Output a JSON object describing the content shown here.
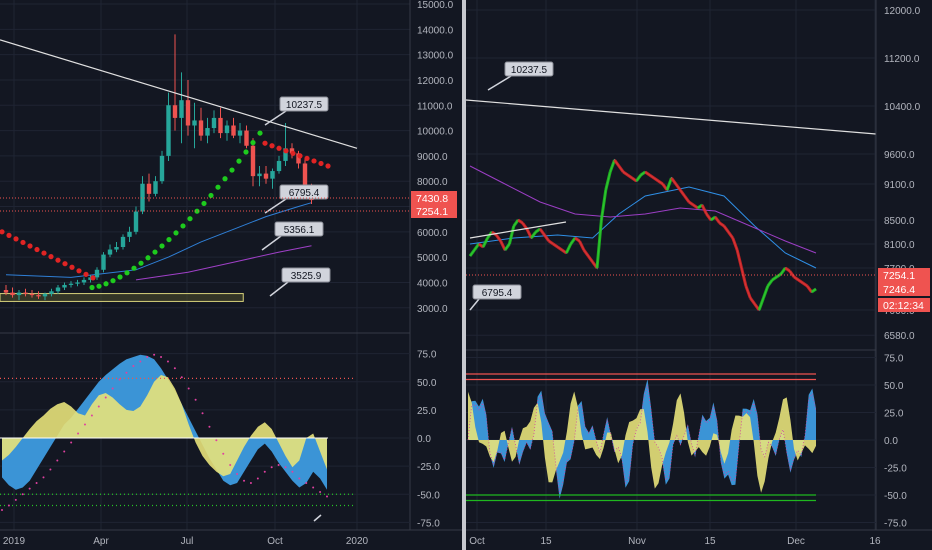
{
  "colors": {
    "background": "#131722",
    "grid": "#1f2433",
    "divider": "#c7c9cf",
    "axis_text": "#b2b5be",
    "bull": "#26a69a",
    "bear": "#ef5350",
    "rsi_blue": "#3d9be0",
    "rsi_yellow": "#e8e27a",
    "label_bg": "#d1d4dc",
    "price_tag_red": "#ef5350",
    "zone_fill": "#4a4a2a",
    "zone_stroke": "#d8d27a"
  },
  "chart_data": [
    {
      "panel": "left-main",
      "type": "candlestick",
      "x_ticks": [
        "2019",
        "Apr",
        "Jul",
        "Oct",
        "2020"
      ],
      "y_ticks": [
        "3000.0",
        "4000.0",
        "5000.0",
        "6000.0",
        "7000.0",
        "8000.0",
        "9000.0",
        "10000.0",
        "11000.0",
        "12000.0",
        "13000.0",
        "14000.0",
        "15000.0"
      ],
      "ylim": [
        2200,
        15000
      ],
      "candles": [
        [
          3700,
          3900,
          3500,
          3600
        ],
        [
          3600,
          3800,
          3400,
          3500
        ],
        [
          3500,
          3700,
          3300,
          3600
        ],
        [
          3600,
          3750,
          3450,
          3550
        ],
        [
          3550,
          3700,
          3400,
          3500
        ],
        [
          3500,
          3650,
          3350,
          3450
        ],
        [
          3450,
          3600,
          3300,
          3550
        ],
        [
          3550,
          3750,
          3450,
          3650
        ],
        [
          3650,
          3900,
          3550,
          3800
        ],
        [
          3800,
          4000,
          3700,
          3900
        ],
        [
          3900,
          4050,
          3800,
          3950
        ],
        [
          3950,
          4100,
          3850,
          4000
        ],
        [
          4000,
          4200,
          3900,
          4100
        ],
        [
          4100,
          4300,
          4000,
          4200
        ],
        [
          4200,
          4600,
          4100,
          4500
        ],
        [
          4500,
          5200,
          4400,
          5100
        ],
        [
          5100,
          5500,
          5000,
          5300
        ],
        [
          5300,
          5600,
          5200,
          5400
        ],
        [
          5400,
          5900,
          5300,
          5800
        ],
        [
          5800,
          6200,
          5600,
          6000
        ],
        [
          6000,
          7000,
          5900,
          6800
        ],
        [
          6800,
          8200,
          6700,
          7900
        ],
        [
          7900,
          8300,
          7200,
          7500
        ],
        [
          7500,
          8200,
          7400,
          8000
        ],
        [
          8000,
          9200,
          7900,
          9000
        ],
        [
          9000,
          11500,
          8800,
          11000
        ],
        [
          11000,
          13800,
          10000,
          10500
        ],
        [
          10500,
          12300,
          9500,
          11200
        ],
        [
          11200,
          12000,
          9800,
          10200
        ],
        [
          10200,
          11100,
          9300,
          10400
        ],
        [
          10400,
          10900,
          9600,
          9800
        ],
        [
          9800,
          10500,
          9500,
          10100
        ],
        [
          10100,
          10800,
          9900,
          10500
        ],
        [
          10500,
          10900,
          9700,
          9900
        ],
        [
          9900,
          10400,
          9600,
          10200
        ],
        [
          10200,
          10500,
          9700,
          9800
        ],
        [
          9800,
          10300,
          9500,
          10000
        ],
        [
          10000,
          10200,
          9300,
          9400
        ],
        [
          9400,
          9700,
          7800,
          8200
        ],
        [
          8200,
          8600,
          7800,
          8300
        ],
        [
          8300,
          8600,
          7900,
          8100
        ],
        [
          8100,
          8500,
          7700,
          8400
        ],
        [
          8400,
          9000,
          8300,
          8800
        ],
        [
          8800,
          10300,
          8600,
          9300
        ],
        [
          9300,
          9500,
          8900,
          9100
        ],
        [
          9100,
          9200,
          8500,
          8700
        ],
        [
          8700,
          8900,
          7500,
          7600
        ],
        [
          7600,
          7900,
          7100,
          7254
        ]
      ],
      "annotations": [
        "10237.5",
        "6795.4",
        "5356.1",
        "3525.9"
      ],
      "price_tags": [
        {
          "label": "7430.8",
          "value": 7430.8
        },
        {
          "label": "7254.1",
          "value": 7254.1
        }
      ],
      "trendline": [
        [
          0,
          12400
        ],
        [
          47,
          9300
        ]
      ],
      "ma_blue": [
        [
          0,
          4300
        ],
        [
          10,
          4200
        ],
        [
          20,
          4500
        ],
        [
          25,
          5000
        ],
        [
          30,
          5600
        ],
        [
          35,
          6100
        ],
        [
          40,
          6600
        ],
        [
          45,
          7000
        ],
        [
          47,
          7150
        ]
      ],
      "ma_purple": [
        [
          20,
          4100
        ],
        [
          28,
          4400
        ],
        [
          35,
          4800
        ],
        [
          42,
          5200
        ],
        [
          47,
          5450
        ]
      ],
      "zone": {
        "x0": 0,
        "x1": 36.5,
        "y0": 3250,
        "y1": 3560
      }
    },
    {
      "panel": "left-rsi",
      "type": "area",
      "y_ticks": [
        "75.0",
        "50.0",
        "25.0",
        "0.0",
        "-25.0",
        "-50.0",
        "-75.0"
      ],
      "ylim": [
        -80,
        80
      ],
      "levels": [
        53,
        -50,
        -60
      ],
      "blue": [
        -35,
        -42,
        -46,
        -44,
        -38,
        -28,
        -18,
        -8,
        2,
        12,
        18,
        26,
        34,
        42,
        50,
        56,
        61,
        66,
        70,
        72,
        74,
        73,
        70,
        62,
        52,
        42,
        30,
        18,
        6,
        -6,
        -18,
        -28,
        -38,
        -42,
        -40,
        -30,
        -20,
        -10,
        -5,
        -12,
        -22,
        -30,
        -38,
        -44,
        -40,
        -30,
        -36,
        -46
      ],
      "yellow": [
        -20,
        -15,
        -8,
        0,
        8,
        15,
        20,
        26,
        30,
        32,
        28,
        22,
        20,
        30,
        38,
        40,
        36,
        30,
        25,
        24,
        28,
        38,
        50,
        56,
        54,
        44,
        30,
        12,
        -4,
        -16,
        -24,
        -30,
        -34,
        -32,
        -20,
        -8,
        2,
        10,
        14,
        8,
        -4,
        -16,
        -26,
        -20,
        0,
        4,
        -12,
        -28
      ],
      "dots": [
        -64,
        -60,
        -55,
        -50,
        -45,
        -40,
        -35,
        -28,
        -20,
        -12,
        -4,
        4,
        12,
        20,
        28,
        36,
        44,
        52,
        58,
        64,
        68,
        72,
        74,
        72,
        68,
        62,
        54,
        44,
        34,
        22,
        10,
        -2,
        -14,
        -24,
        -32,
        -38,
        -40,
        -36,
        -30,
        -26,
        -24,
        -26,
        -30,
        -36,
        -40,
        -44,
        -48,
        -52
      ]
    },
    {
      "panel": "right-main",
      "type": "line",
      "x_ticks": [
        "Oct",
        "15",
        "Nov",
        "15",
        "Dec",
        "16"
      ],
      "y_ticks": [
        "6580.0",
        "7000.0",
        "7700.0",
        "8100.0",
        "8500.0",
        "9100.0",
        "9600.0",
        "10400.0",
        "11200.0",
        "12000.0"
      ],
      "ylim": [
        6400,
        12100
      ],
      "price": [
        7900,
        8000,
        8100,
        8050,
        8200,
        8300,
        8250,
        8150,
        8000,
        8100,
        8400,
        8500,
        8450,
        8350,
        8200,
        8300,
        8350,
        8250,
        8150,
        8100,
        8050,
        8000,
        7950,
        8100,
        8200,
        8150,
        8000,
        7900,
        7800,
        7700,
        8500,
        9000,
        9300,
        9500,
        9400,
        9300,
        9250,
        9200,
        9150,
        9250,
        9300,
        9250,
        9200,
        9150,
        9100,
        9000,
        9200,
        9100,
        9000,
        8900,
        8800,
        8750,
        8700,
        8750,
        8600,
        8500,
        8550,
        8450,
        8400,
        8300,
        8200,
        8000,
        7700,
        7400,
        7200,
        7100,
        7000,
        7200,
        7400,
        7500,
        7550,
        7600,
        7700,
        7650,
        7550,
        7500,
        7450,
        7400,
        7300,
        7350
      ],
      "ma_blue": [
        [
          0,
          8100
        ],
        [
          10,
          8200
        ],
        [
          20,
          8250
        ],
        [
          28,
          8200
        ],
        [
          34,
          8600
        ],
        [
          40,
          8900
        ],
        [
          50,
          9050
        ],
        [
          58,
          8900
        ],
        [
          65,
          8400
        ],
        [
          72,
          7950
        ],
        [
          79,
          7700
        ]
      ],
      "ma_purple": [
        [
          0,
          9400
        ],
        [
          8,
          9100
        ],
        [
          16,
          8800
        ],
        [
          24,
          8600
        ],
        [
          32,
          8550
        ],
        [
          40,
          8600
        ],
        [
          48,
          8700
        ],
        [
          56,
          8650
        ],
        [
          64,
          8400
        ],
        [
          72,
          8150
        ],
        [
          79,
          7950
        ]
      ],
      "trendline_top": [
        [
          0,
          10100
        ],
        [
          79,
          9400
        ]
      ],
      "trendline_bottom": [
        [
          0,
          7650
        ],
        [
          13,
          8150
        ]
      ],
      "annotations": [
        "10237.5",
        "6795.4"
      ],
      "price_tags": [
        {
          "label": "7254.1",
          "value": 7254.1
        },
        {
          "label": "7246.4",
          "value": 7100
        },
        {
          "label": "02:12:34",
          "value": 6900
        }
      ],
      "hline": 7254.1
    },
    {
      "panel": "right-rsi",
      "type": "area",
      "y_ticks": [
        "75.0",
        "50.0",
        "25.0",
        "0.0",
        "-25.0",
        "-50.0",
        "-75.0"
      ],
      "ylim": [
        -80,
        80
      ],
      "levels": [
        55,
        60,
        -50,
        -55
      ],
      "n_points": 96
    }
  ]
}
